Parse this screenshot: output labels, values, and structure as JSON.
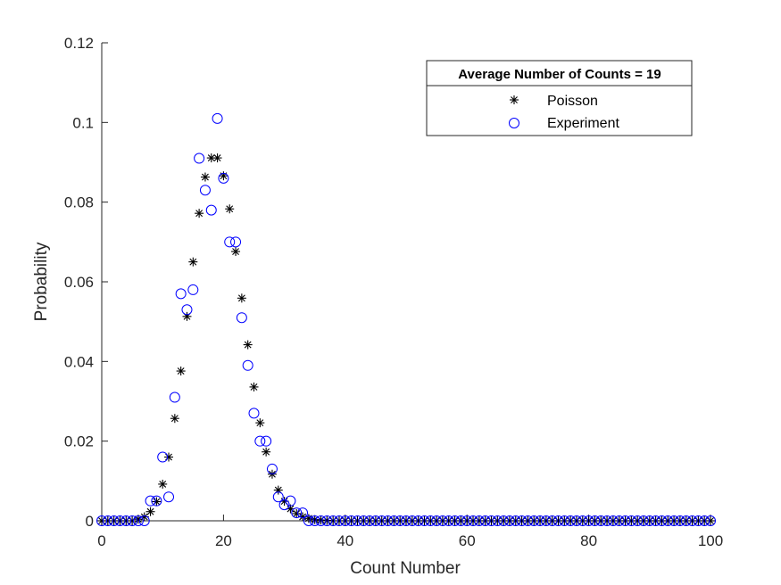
{
  "chart_data": {
    "type": "scatter",
    "title": "",
    "xlabel": "Count Number",
    "ylabel": "Probability",
    "xlim": [
      0,
      100
    ],
    "ylim": [
      0,
      0.12
    ],
    "xticks": [
      0,
      20,
      40,
      60,
      80,
      100
    ],
    "xtick_labels": [
      "0",
      "20",
      "40",
      "60",
      "80",
      "100"
    ],
    "yticks": [
      0,
      0.02,
      0.04,
      0.06,
      0.08,
      0.1,
      0.12
    ],
    "ytick_labels": [
      "0",
      "0.02",
      "0.04",
      "0.06",
      "0.08",
      "0.1",
      "0.12"
    ],
    "grid": false,
    "legend": {
      "title": "Average Number of Counts = 19",
      "placement": "top-right",
      "entries": [
        "Poisson",
        "Experiment"
      ]
    },
    "series": [
      {
        "name": "Poisson",
        "marker": "asterisk",
        "color": "#000000",
        "x": [
          0,
          1,
          2,
          3,
          4,
          5,
          6,
          7,
          8,
          9,
          10,
          11,
          12,
          13,
          14,
          15,
          16,
          17,
          18,
          19,
          20,
          21,
          22,
          23,
          24,
          25,
          26,
          27,
          28,
          29,
          30,
          31,
          32,
          33,
          34,
          35,
          36,
          37,
          38,
          39,
          40,
          41,
          42,
          43,
          44,
          45,
          46,
          47,
          48,
          49,
          50,
          51,
          52,
          53,
          54,
          55,
          56,
          57,
          58,
          59,
          60,
          61,
          62,
          63,
          64,
          65,
          66,
          67,
          68,
          69,
          70,
          71,
          72,
          73,
          74,
          75,
          76,
          77,
          78,
          79,
          80,
          81,
          82,
          83,
          84,
          85,
          86,
          87,
          88,
          89,
          90,
          91,
          92,
          93,
          94,
          95,
          96,
          97,
          98,
          99,
          100
        ],
        "y": [
          0,
          0,
          0,
          0,
          0,
          0,
          0.0004,
          0.001,
          0.0023,
          0.0048,
          0.0092,
          0.016,
          0.0257,
          0.0376,
          0.0513,
          0.065,
          0.0772,
          0.0863,
          0.0911,
          0.0911,
          0.0866,
          0.0783,
          0.0676,
          0.0559,
          0.0442,
          0.0336,
          0.0246,
          0.0173,
          0.0117,
          0.0077,
          0.0049,
          0.003,
          0.0018,
          0.001,
          0.0006,
          0.0003,
          0.0002,
          0.0001,
          0,
          0,
          0,
          0,
          0,
          0,
          0,
          0,
          0,
          0,
          0,
          0,
          0,
          0,
          0,
          0,
          0,
          0,
          0,
          0,
          0,
          0,
          0,
          0,
          0,
          0,
          0,
          0,
          0,
          0,
          0,
          0,
          0,
          0,
          0,
          0,
          0,
          0,
          0,
          0,
          0,
          0,
          0,
          0,
          0,
          0,
          0,
          0,
          0,
          0,
          0,
          0,
          0,
          0,
          0,
          0,
          0,
          0,
          0,
          0,
          0,
          0,
          0
        ]
      },
      {
        "name": "Experiment",
        "marker": "circle",
        "color": "#0000ff",
        "x": [
          0,
          1,
          2,
          3,
          4,
          5,
          6,
          7,
          8,
          9,
          10,
          11,
          12,
          13,
          14,
          15,
          16,
          17,
          18,
          19,
          20,
          21,
          22,
          23,
          24,
          25,
          26,
          27,
          28,
          29,
          30,
          31,
          32,
          33,
          34,
          35,
          36,
          37,
          38,
          39,
          40,
          41,
          42,
          43,
          44,
          45,
          46,
          47,
          48,
          49,
          50,
          51,
          52,
          53,
          54,
          55,
          56,
          57,
          58,
          59,
          60,
          61,
          62,
          63,
          64,
          65,
          66,
          67,
          68,
          69,
          70,
          71,
          72,
          73,
          74,
          75,
          76,
          77,
          78,
          79,
          80,
          81,
          82,
          83,
          84,
          85,
          86,
          87,
          88,
          89,
          90,
          91,
          92,
          93,
          94,
          95,
          96,
          97,
          98,
          99,
          100
        ],
        "y": [
          0,
          0,
          0,
          0,
          0,
          0,
          0,
          0,
          0.005,
          0.005,
          0.016,
          0.006,
          0.031,
          0.057,
          0.053,
          0.058,
          0.091,
          0.083,
          0.078,
          0.101,
          0.086,
          0.07,
          0.07,
          0.051,
          0.039,
          0.027,
          0.02,
          0.02,
          0.013,
          0.006,
          0.004,
          0.005,
          0.002,
          0.002,
          0,
          0,
          0,
          0,
          0,
          0,
          0,
          0,
          0,
          0,
          0,
          0,
          0,
          0,
          0,
          0,
          0,
          0,
          0,
          0,
          0,
          0,
          0,
          0,
          0,
          0,
          0,
          0,
          0,
          0,
          0,
          0,
          0,
          0,
          0,
          0,
          0,
          0,
          0,
          0,
          0,
          0,
          0,
          0,
          0,
          0,
          0,
          0,
          0,
          0,
          0,
          0,
          0,
          0,
          0,
          0,
          0,
          0,
          0,
          0,
          0,
          0,
          0,
          0,
          0,
          0,
          0
        ]
      }
    ]
  }
}
